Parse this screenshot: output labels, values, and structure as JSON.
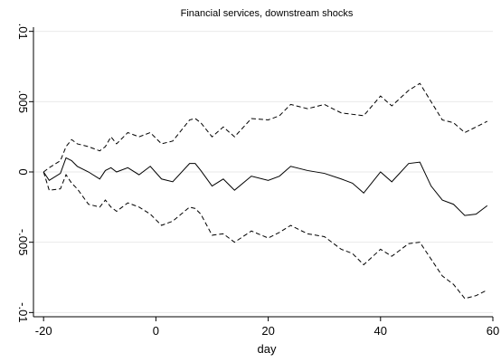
{
  "chart_data": {
    "type": "line",
    "title": "Financial services, downstream shocks",
    "x_label": "day",
    "x": [
      -20,
      -19,
      -17,
      -16,
      -15,
      -14,
      -12,
      -10,
      -9,
      -8,
      -7,
      -5,
      -3,
      -1,
      1,
      3,
      6,
      7,
      8,
      10,
      12,
      14,
      17,
      20,
      22,
      24,
      27,
      30,
      33,
      35,
      37,
      40,
      42,
      45,
      47,
      49,
      51,
      53,
      55,
      57,
      59
    ],
    "series": [
      {
        "color": "#000000",
        "dash": "solid",
        "values": [
          0,
          -0.0006,
          -0.0001,
          0.001,
          0.0008,
          0.0004,
          0,
          -0.0005,
          0.0001,
          0.0003,
          0,
          0.0003,
          -0.0002,
          0.0004,
          -0.0005,
          -0.0007,
          0.0006,
          0.0006,
          0.0001,
          -0.001,
          -0.0005,
          -0.0013,
          -0.0003,
          -0.0006,
          -0.0003,
          0.0004,
          0.0001,
          -0.0001,
          -0.0005,
          -0.0008,
          -0.0015,
          0,
          -0.0007,
          0.0006,
          0.0007,
          -0.001,
          -0.002,
          -0.0023,
          -0.0031,
          -0.003,
          -0.0024
        ]
      },
      {
        "color": "#000000",
        "dash": "dashed",
        "values": [
          0,
          0.0003,
          0.0008,
          0.0018,
          0.0023,
          0.002,
          0.0018,
          0.0015,
          0.0018,
          0.0025,
          0.002,
          0.0028,
          0.0025,
          0.0028,
          0.002,
          0.0022,
          0.0037,
          0.0038,
          0.0035,
          0.0025,
          0.0032,
          0.0025,
          0.0038,
          0.0037,
          0.004,
          0.0048,
          0.0045,
          0.0048,
          0.0042,
          0.0041,
          0.004,
          0.0054,
          0.0047,
          0.0058,
          0.0063,
          0.005,
          0.0037,
          0.0035,
          0.0028,
          0.0032,
          0.0036
        ]
      },
      {
        "color": "#000000",
        "dash": "dashed",
        "values": [
          0,
          -0.0013,
          -0.0012,
          -0.0002,
          -0.0008,
          -0.0012,
          -0.0023,
          -0.0025,
          -0.002,
          -0.0025,
          -0.0028,
          -0.0022,
          -0.0025,
          -0.003,
          -0.0038,
          -0.0035,
          -0.0025,
          -0.0026,
          -0.003,
          -0.0045,
          -0.0044,
          -0.005,
          -0.0042,
          -0.0047,
          -0.0043,
          -0.0038,
          -0.0044,
          -0.0046,
          -0.0055,
          -0.0058,
          -0.0066,
          -0.0055,
          -0.006,
          -0.0051,
          -0.005,
          -0.0062,
          -0.0074,
          -0.008,
          -0.009,
          -0.0088,
          -0.0084
        ]
      }
    ],
    "xlim": [
      -21.8,
      60
    ],
    "xticks": [
      -20,
      0,
      20,
      40,
      60
    ],
    "ylim": [
      -0.0103,
      0.0103
    ],
    "yticks": [
      {
        "value": -0.01,
        "label": "-.01"
      },
      {
        "value": -0.005,
        "label": "-.005"
      },
      {
        "value": 0,
        "label": "0"
      },
      {
        "value": 0.005,
        "label": ".005"
      },
      {
        "value": 0.01,
        "label": ".01"
      }
    ],
    "grid": true,
    "grid_color": "#eaeaea"
  }
}
